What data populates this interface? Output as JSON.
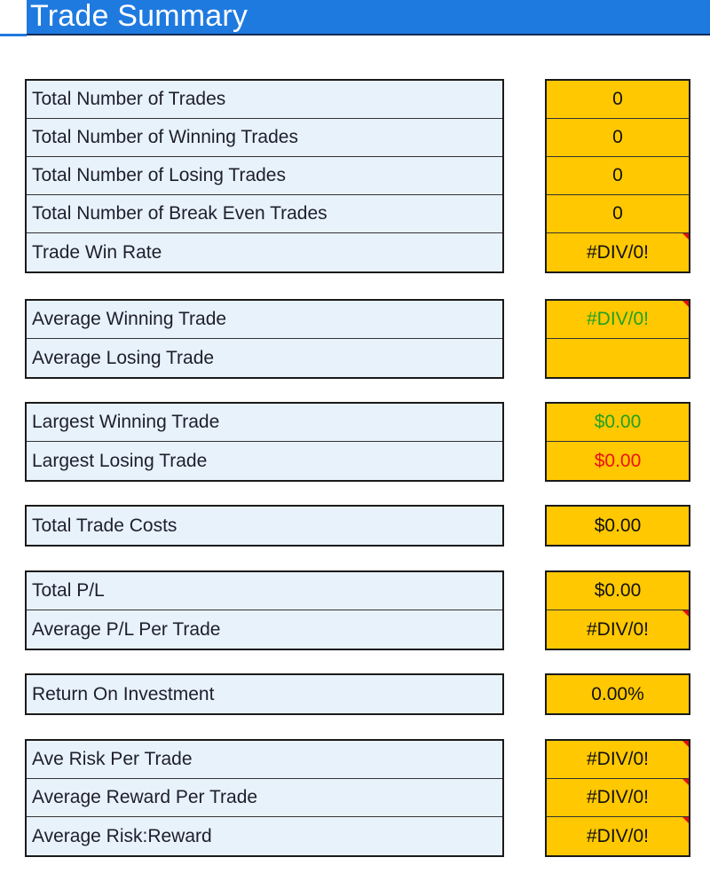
{
  "header": {
    "title": "Trade Summary"
  },
  "groups": [
    {
      "rows": [
        {
          "label": "Total Number of Trades",
          "value": "0"
        },
        {
          "label": "Total Number of Winning Trades",
          "value": "0"
        },
        {
          "label": "Total Number of Losing Trades",
          "value": "0"
        },
        {
          "label": "Total Number of Break Even Trades",
          "value": "0"
        },
        {
          "label": "Trade Win Rate",
          "value": "#DIV/0!"
        }
      ]
    },
    {
      "rows": [
        {
          "label": "Average Winning Trade",
          "value": "#DIV/0!"
        },
        {
          "label": "Average Losing Trade",
          "value": ""
        }
      ]
    },
    {
      "rows": [
        {
          "label": "Largest Winning Trade",
          "value": "$0.00"
        },
        {
          "label": "Largest Losing Trade",
          "value": "$0.00"
        }
      ]
    },
    {
      "rows": [
        {
          "label": "Total Trade Costs",
          "value": "$0.00"
        }
      ]
    },
    {
      "rows": [
        {
          "label": "Total P/L",
          "value": "$0.00"
        },
        {
          "label": "Average P/L Per Trade",
          "value": "#DIV/0!"
        }
      ]
    },
    {
      "rows": [
        {
          "label": "Return On Investment",
          "value": "0.00%"
        }
      ]
    },
    {
      "rows": [
        {
          "label": "Ave Risk Per Trade",
          "value": "#DIV/0!"
        },
        {
          "label": "Average Reward Per Trade",
          "value": "#DIV/0!"
        },
        {
          "label": "Average Risk:Reward",
          "value": "#DIV/0!"
        }
      ]
    }
  ],
  "colors": {
    "header_bg": "#1f7ae0",
    "label_bg": "#e8f2fb",
    "value_bg": "#ffc800",
    "positive": "#22a022",
    "negative": "#ee1111",
    "comment_marker": "#e01010"
  }
}
